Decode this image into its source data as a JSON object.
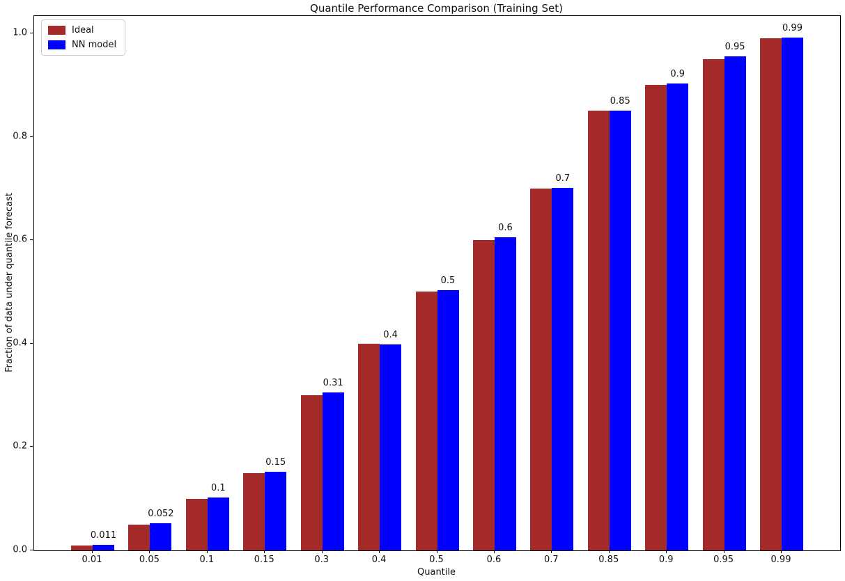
{
  "chart_data": {
    "type": "bar",
    "title": "Quantile Performance Comparison (Training Set)",
    "xlabel": "Quantile",
    "ylabel": "Fraction of data under quantile forecast",
    "categories": [
      "0.01",
      "0.05",
      "0.1",
      "0.15",
      "0.3",
      "0.4",
      "0.5",
      "0.6",
      "0.7",
      "0.85",
      "0.9",
      "0.95",
      "0.99"
    ],
    "series": [
      {
        "name": "Ideal",
        "color": "#a52a2a",
        "values": [
          0.01,
          0.05,
          0.1,
          0.15,
          0.3,
          0.4,
          0.5,
          0.6,
          0.7,
          0.85,
          0.9,
          0.95,
          0.99
        ]
      },
      {
        "name": "NN model",
        "color": "#0000ff",
        "values": [
          0.011,
          0.052,
          0.102,
          0.152,
          0.306,
          0.398,
          0.503,
          0.605,
          0.701,
          0.851,
          0.903,
          0.955,
          0.992
        ]
      }
    ],
    "bar_labels": [
      "0.011",
      "0.052",
      "0.1",
      "0.15",
      "0.31",
      "0.4",
      "0.5",
      "0.6",
      "0.7",
      "0.85",
      "0.9",
      "0.95",
      "0.99"
    ],
    "yticks": [
      0.0,
      0.2,
      0.4,
      0.6,
      0.8,
      1.0
    ],
    "ytick_labels": [
      "0.0",
      "0.2",
      "0.4",
      "0.6",
      "0.8",
      "1.0"
    ],
    "ylim": [
      0,
      1.0336
    ],
    "grid": false,
    "legend_position": "upper-left",
    "frame": "full-box"
  }
}
